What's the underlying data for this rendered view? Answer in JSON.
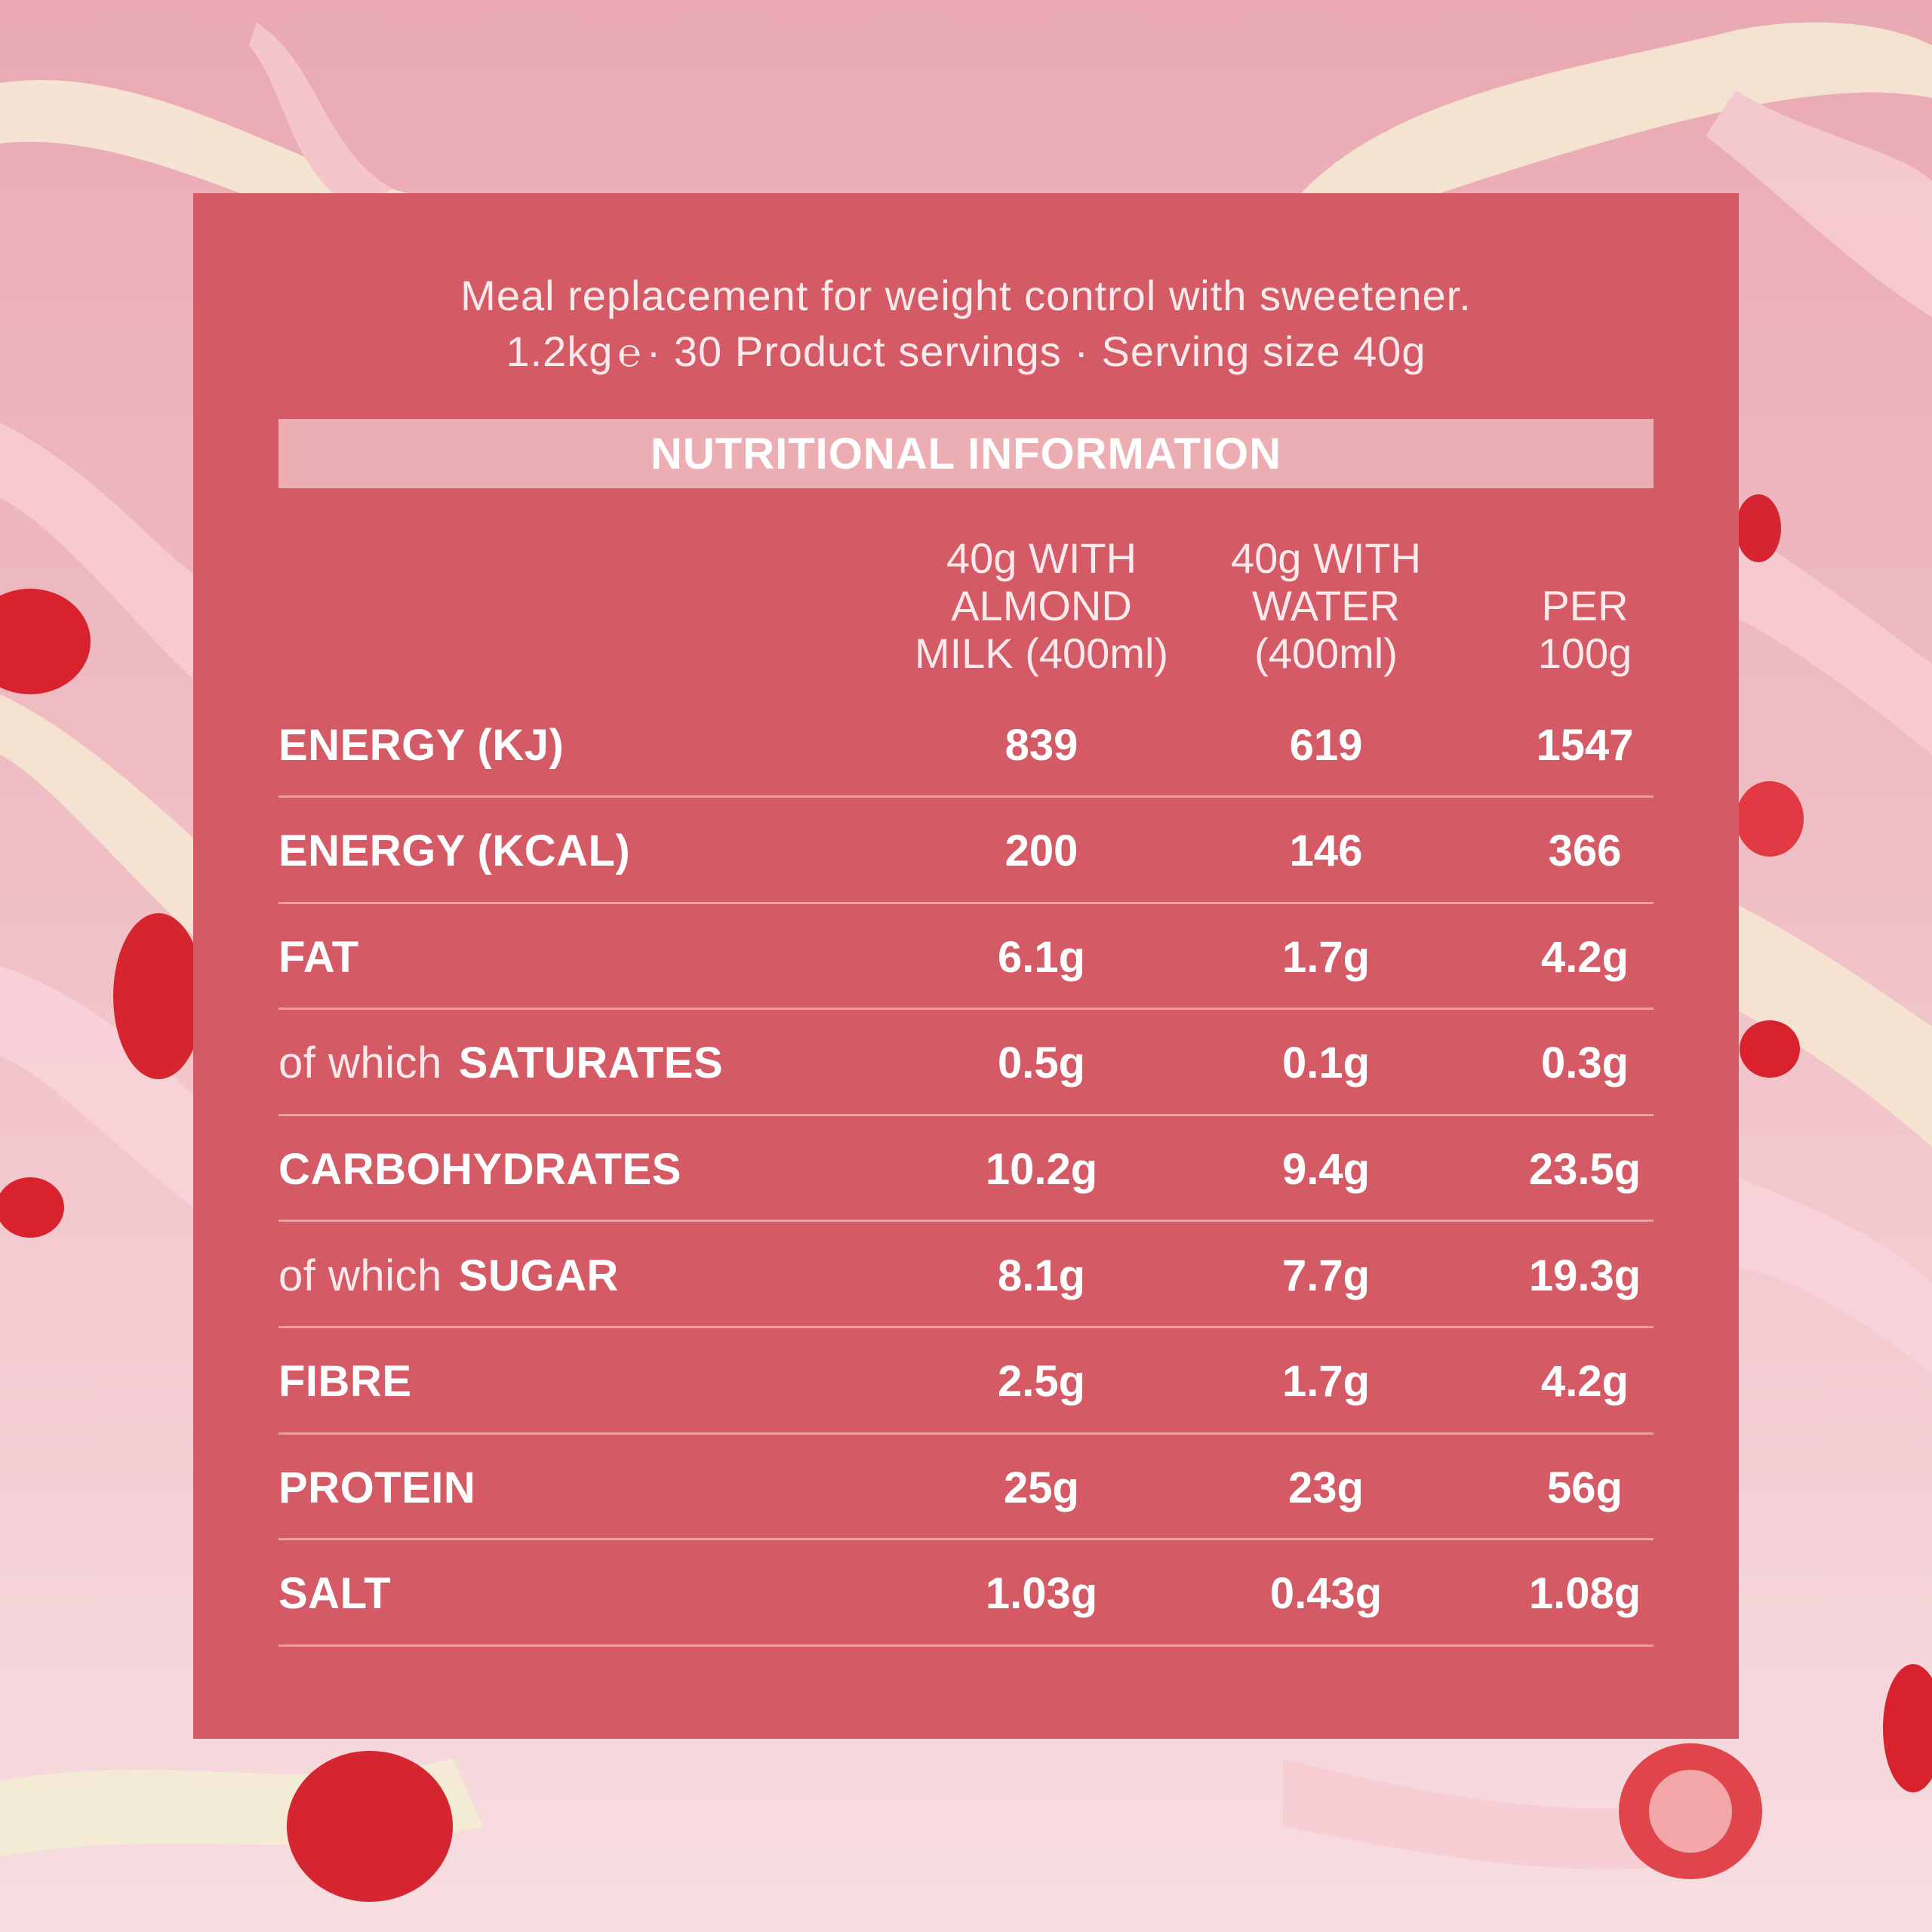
{
  "header": {
    "line1": "Meal replacement for weight control with sweetener.",
    "line2_a": "1.2kg",
    "line2_b": "· 30 Product servings · Serving size 40g"
  },
  "table": {
    "title": "NUTRITIONAL INFORMATION",
    "columns": [
      "40g WITH\nALMOND\nMILK (400ml)",
      "40g WITH\nWATER\n(400ml)",
      "PER\n100g"
    ],
    "rows": [
      {
        "prefix": "",
        "label": "ENERGY (KJ)",
        "values": [
          "839",
          "619",
          "1547"
        ]
      },
      {
        "prefix": "",
        "label": "ENERGY (KCAL)",
        "values": [
          "200",
          "146",
          "366"
        ]
      },
      {
        "prefix": "",
        "label": "FAT",
        "values": [
          "6.1g",
          "1.7g",
          "4.2g"
        ]
      },
      {
        "prefix": "of which",
        "label": "SATURATES",
        "values": [
          "0.5g",
          "0.1g",
          "0.3g"
        ]
      },
      {
        "prefix": "",
        "label": "CARBOHYDRATES",
        "values": [
          "10.2g",
          "9.4g",
          "23.5g"
        ]
      },
      {
        "prefix": "of which",
        "label": "SUGAR",
        "values": [
          "8.1g",
          "7.7g",
          "19.3g"
        ]
      },
      {
        "prefix": "",
        "label": "FIBRE",
        "values": [
          "2.5g",
          "1.7g",
          "4.2g"
        ]
      },
      {
        "prefix": "",
        "label": "PROTEIN",
        "values": [
          "25g",
          "23g",
          "56g"
        ]
      },
      {
        "prefix": "",
        "label": "SALT",
        "values": [
          "1.03g",
          "0.43g",
          "1.08g"
        ]
      }
    ]
  },
  "colors": {
    "panel": "#d45b65",
    "title_bar": "#ecaeb2",
    "divider": "#ec9ea4",
    "background": "#eaa9b3"
  }
}
